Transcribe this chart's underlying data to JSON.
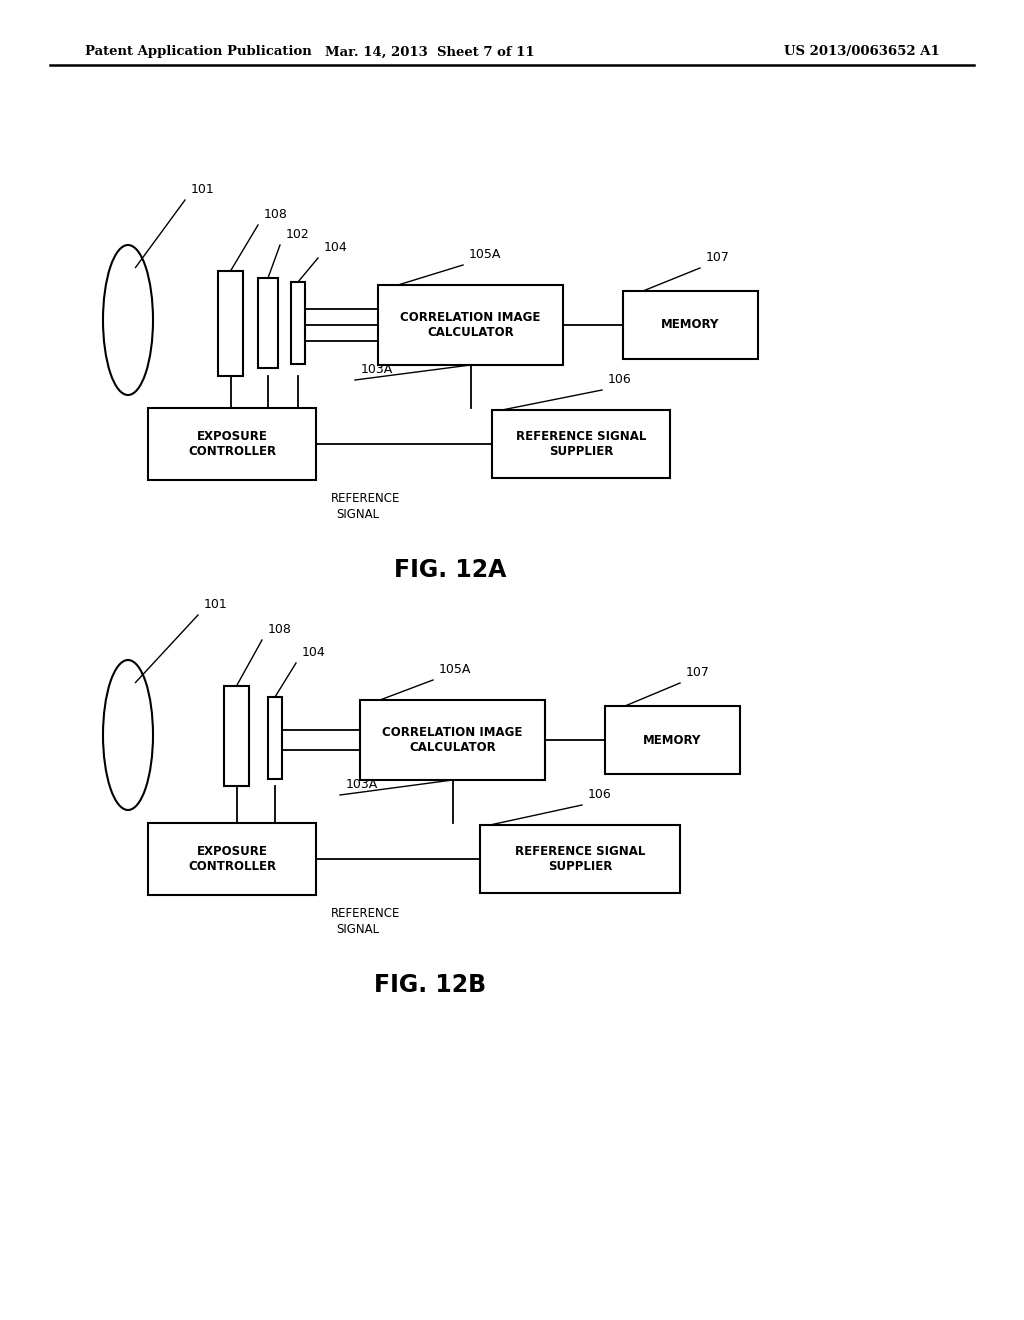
{
  "background_color": "#ffffff",
  "header_left": "Patent Application Publication",
  "header_mid": "Mar. 14, 2013  Sheet 7 of 11",
  "header_right": "US 2013/0063652 A1",
  "fig_label_A": "FIG. 12A",
  "fig_label_B": "FIG. 12B"
}
